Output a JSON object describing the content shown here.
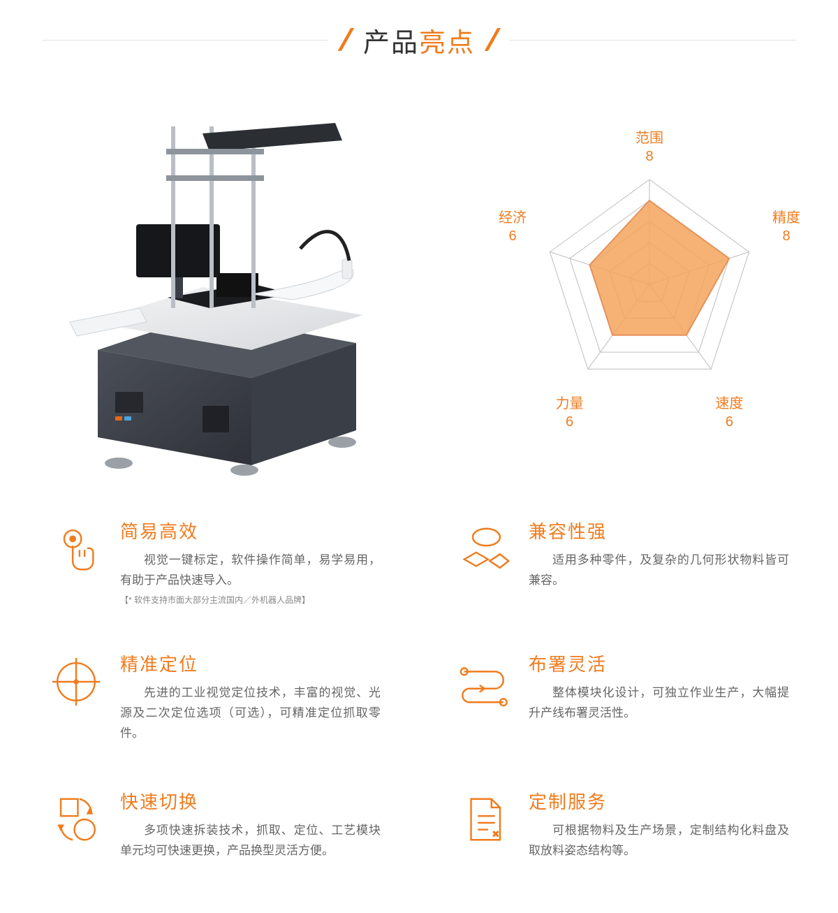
{
  "title": {
    "part1": "产品",
    "part2": "亮点"
  },
  "accent_color": "#f07c1e",
  "radar": {
    "type": "radar",
    "axes": [
      "范围",
      "精度",
      "速度",
      "力量",
      "经济"
    ],
    "values": [
      8,
      8,
      6,
      6,
      6
    ],
    "max": 10,
    "rings": 5,
    "fill_color": "#f3a55c",
    "fill_opacity": 0.85,
    "stroke_color": "#e5915a",
    "grid_color": "#bdbdbd",
    "label_color": "#f07c1e",
    "label_fontsize": 20,
    "background_color": "#ffffff"
  },
  "features": [
    {
      "icon": "touch-icon",
      "title": "简易高效",
      "desc": "视觉一键标定，软件操作简单，易学易用，有助于产品快速导入。",
      "note": "【* 软件支持市面大部分主流国内／外机器人品牌】"
    },
    {
      "icon": "shapes-icon",
      "title": "兼容性强",
      "desc": "适用多种零件，及复杂的几何形状物料皆可兼容。"
    },
    {
      "icon": "crosshair-icon",
      "title": "精准定位",
      "desc": "先进的工业视觉定位技术，丰富的视觉、光源及二次定位选项（可选），可精准定位抓取零件。"
    },
    {
      "icon": "path-icon",
      "title": "布署灵活",
      "desc": "整体模块化设计，可独立作业生产，大幅提升产线布署灵活性。"
    },
    {
      "icon": "cycle-icon",
      "title": "快速切换",
      "desc": "多项快速拆装技术，抓取、定位、工艺模块单元均可快速更换，产品换型灵活方便。"
    },
    {
      "icon": "document-icon",
      "title": "定制服务",
      "desc": "可根据物料及生产场景，定制结构化料盘及取放料姿态结构等。"
    }
  ]
}
